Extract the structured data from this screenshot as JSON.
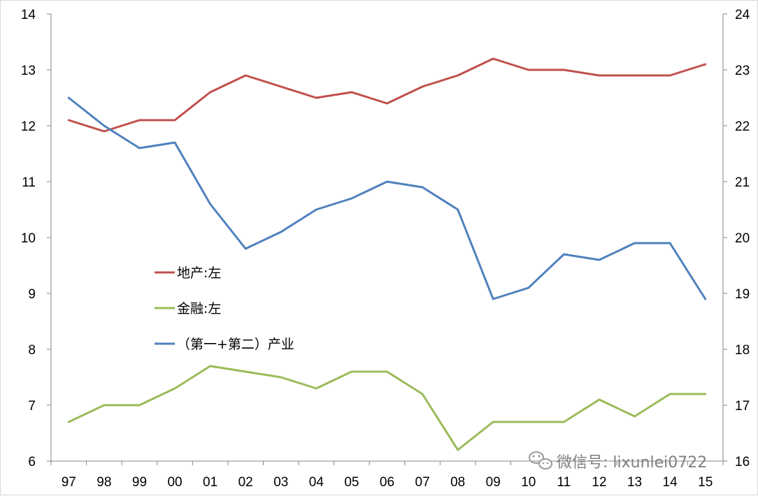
{
  "chart_data": {
    "type": "line",
    "categories": [
      "97",
      "98",
      "99",
      "00",
      "01",
      "02",
      "03",
      "04",
      "05",
      "06",
      "07",
      "08",
      "09",
      "10",
      "11",
      "12",
      "13",
      "14",
      "15"
    ],
    "y_left": {
      "min": 6,
      "max": 14,
      "ticks": [
        "6",
        "7",
        "8",
        "9",
        "10",
        "11",
        "12",
        "13",
        "14"
      ]
    },
    "y_right": {
      "min": 16,
      "max": 24,
      "ticks": [
        "16",
        "17",
        "18",
        "19",
        "20",
        "21",
        "22",
        "23",
        "24"
      ]
    },
    "grid": false,
    "legend_position": "center-left",
    "series": [
      {
        "name": "地产:左",
        "axis": "left",
        "color": "#c0504d",
        "values": [
          12.1,
          11.9,
          12.1,
          12.1,
          12.6,
          12.9,
          12.7,
          12.5,
          12.6,
          12.4,
          12.7,
          12.9,
          13.2,
          13.0,
          13.0,
          12.9,
          12.9,
          12.9,
          13.1
        ]
      },
      {
        "name": "金融:左",
        "axis": "left",
        "color": "#9bbb59",
        "values": [
          6.7,
          7.0,
          7.0,
          7.3,
          7.7,
          7.6,
          7.5,
          7.3,
          7.6,
          7.6,
          7.2,
          6.2,
          6.7,
          6.7,
          6.7,
          7.1,
          6.8,
          7.2,
          7.2
        ]
      },
      {
        "name": "（第一+第二）产业",
        "axis": "right",
        "color": "#4f81bd",
        "values": [
          22.5,
          22.0,
          21.6,
          21.7,
          20.6,
          19.8,
          20.1,
          20.5,
          20.7,
          21.0,
          20.9,
          20.5,
          18.9,
          19.1,
          19.7,
          19.6,
          19.9,
          19.9,
          18.9
        ]
      }
    ]
  },
  "watermark": {
    "text": "微信号: lixunlei0722",
    "icon": "wechat-icon"
  }
}
